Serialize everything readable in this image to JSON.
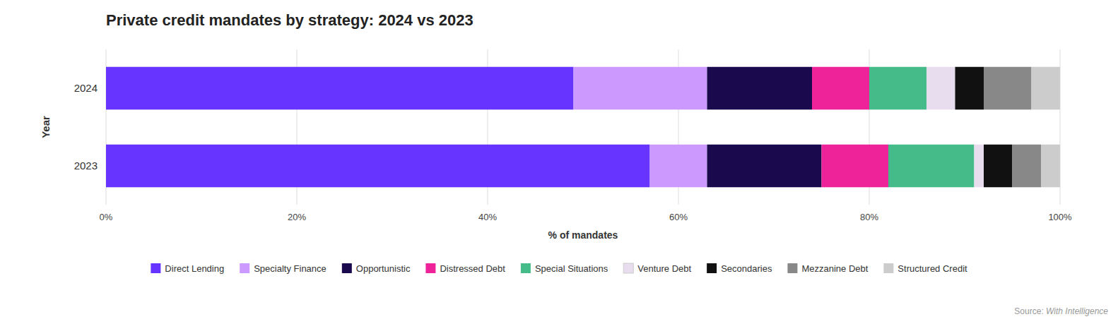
{
  "chart_data": {
    "type": "bar",
    "orientation": "horizontal",
    "stacked": true,
    "title": "Private credit mandates by strategy: 2024 vs 2023",
    "xlabel": "% of mandates",
    "ylabel": "Year",
    "categories": [
      "2024",
      "2023"
    ],
    "series": [
      {
        "name": "Direct Lending",
        "color": "#6633ff",
        "values": [
          49,
          57
        ]
      },
      {
        "name": "Specialty Finance",
        "color": "#cc99ff",
        "values": [
          14,
          6
        ]
      },
      {
        "name": "Opportunistic",
        "color": "#1a0a4d",
        "values": [
          11,
          12
        ]
      },
      {
        "name": "Distressed Debt",
        "color": "#ee2299",
        "values": [
          6,
          7
        ]
      },
      {
        "name": "Special Situations",
        "color": "#44bb88",
        "values": [
          6,
          9
        ]
      },
      {
        "name": "Venture Debt",
        "color": "#e8ddee",
        "values": [
          3,
          1
        ]
      },
      {
        "name": "Secondaries",
        "color": "#111111",
        "values": [
          3,
          3
        ]
      },
      {
        "name": "Mezzanine Debt",
        "color": "#888888",
        "values": [
          5,
          3
        ]
      },
      {
        "name": "Structured Credit",
        "color": "#cccccc",
        "values": [
          3,
          2
        ]
      }
    ],
    "xlim": [
      0,
      100
    ],
    "xticks": [
      {
        "value": 0,
        "label": "0%"
      },
      {
        "value": 20,
        "label": "20%"
      },
      {
        "value": 40,
        "label": "40%"
      },
      {
        "value": 60,
        "label": "60%"
      },
      {
        "value": 80,
        "label": "80%"
      },
      {
        "value": 100,
        "label": "100%"
      }
    ],
    "grid": true,
    "legend": "bottom",
    "annotations": [
      "Source: ",
      "With Intelligence"
    ]
  }
}
